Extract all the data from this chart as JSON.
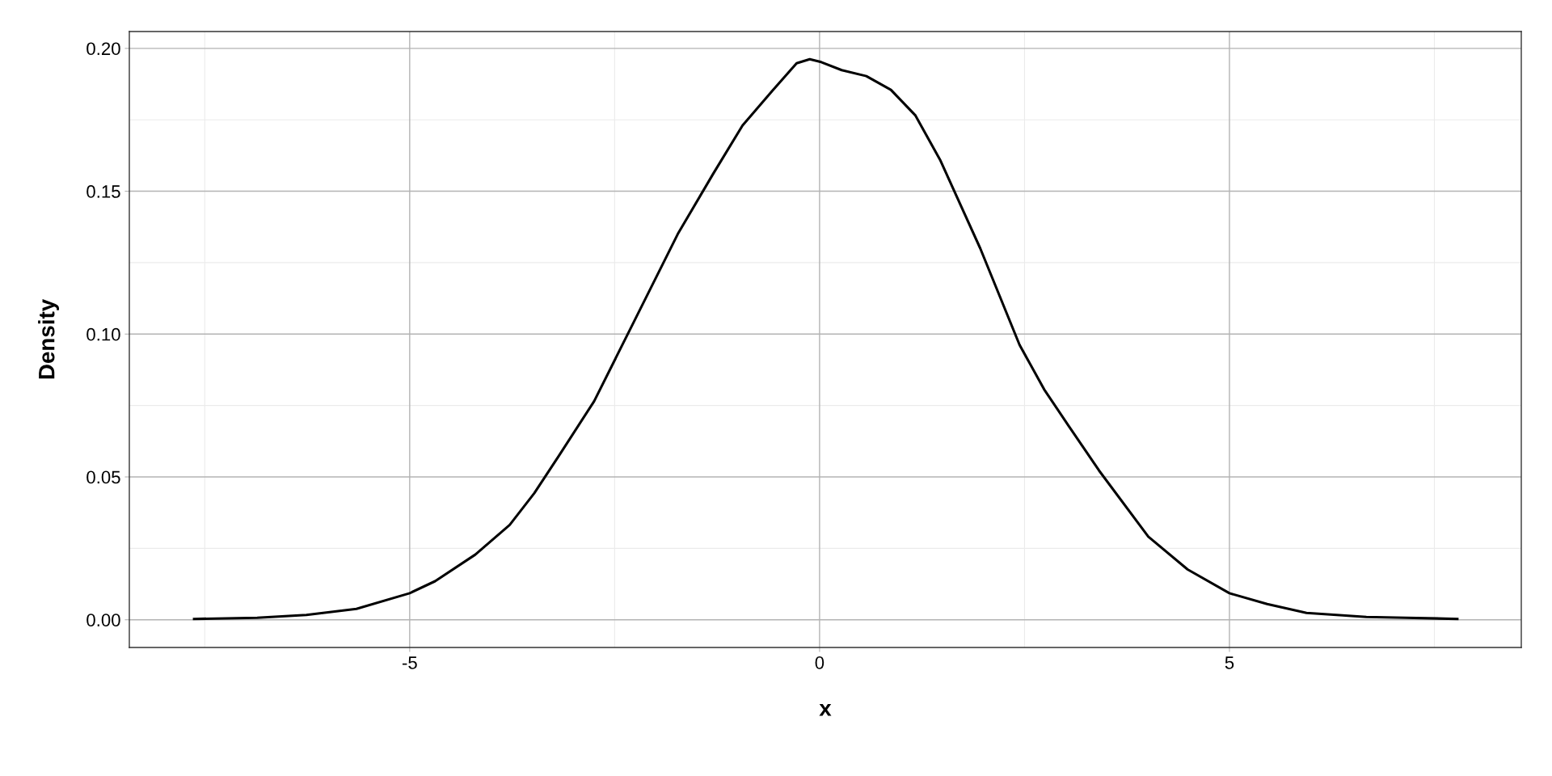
{
  "chart_data": {
    "type": "line",
    "xlabel": "x",
    "ylabel": "Density",
    "xlim": [
      -8.42,
      8.56
    ],
    "ylim": [
      -0.0097,
      0.2059
    ],
    "xticks": [
      -5,
      0,
      5
    ],
    "yticks": [
      {
        "value": 0,
        "label": "0.00"
      },
      {
        "value": 0.05,
        "label": "0.05"
      },
      {
        "value": 0.1,
        "label": "0.10"
      },
      {
        "value": 0.15,
        "label": "0.15"
      },
      {
        "value": 0.2,
        "label": "0.20"
      }
    ],
    "grid": true,
    "legend": false,
    "marker": "none",
    "line_style": "solid",
    "series": [
      {
        "color": "#000000",
        "x": [
          -7.63,
          -6.86,
          -6.26,
          -5.65,
          -5.0,
          -4.69,
          -4.2,
          -3.78,
          -3.48,
          -3.18,
          -2.75,
          -2.27,
          -1.73,
          -1.3,
          -0.94,
          -0.58,
          -0.28,
          -0.12,
          0.02,
          0.27,
          0.57,
          0.87,
          1.17,
          1.47,
          1.96,
          2.44,
          2.74,
          3.04,
          3.41,
          4.01,
          4.49,
          5.0,
          5.46,
          5.94,
          6.67,
          7.15,
          7.78
        ],
        "values": [
          0.0003,
          0.0007,
          0.0017,
          0.0038,
          0.0093,
          0.0135,
          0.0228,
          0.0332,
          0.0443,
          0.0574,
          0.0765,
          0.104,
          0.135,
          0.156,
          0.173,
          0.185,
          0.1948,
          0.1962,
          0.1952,
          0.1924,
          0.1903,
          0.1855,
          0.1765,
          0.161,
          0.13,
          0.0962,
          0.0806,
          0.0678,
          0.0522,
          0.0291,
          0.0176,
          0.0093,
          0.0055,
          0.0024,
          0.001,
          0.0007,
          0.0003
        ]
      }
    ]
  }
}
